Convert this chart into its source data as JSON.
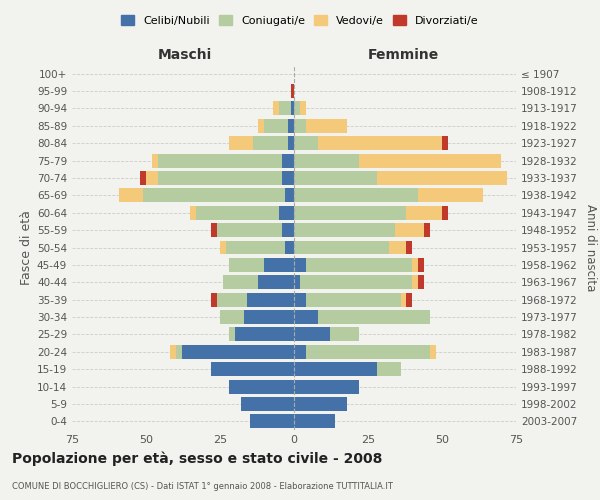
{
  "age_groups": [
    "0-4",
    "5-9",
    "10-14",
    "15-19",
    "20-24",
    "25-29",
    "30-34",
    "35-39",
    "40-44",
    "45-49",
    "50-54",
    "55-59",
    "60-64",
    "65-69",
    "70-74",
    "75-79",
    "80-84",
    "85-89",
    "90-94",
    "95-99",
    "100+"
  ],
  "birth_years": [
    "2003-2007",
    "1998-2002",
    "1993-1997",
    "1988-1992",
    "1983-1987",
    "1978-1982",
    "1973-1977",
    "1968-1972",
    "1963-1967",
    "1958-1962",
    "1953-1957",
    "1948-1952",
    "1943-1947",
    "1938-1942",
    "1933-1937",
    "1928-1932",
    "1923-1927",
    "1918-1922",
    "1913-1917",
    "1908-1912",
    "≤ 1907"
  ],
  "colors": {
    "celibe": "#4472a8",
    "coniugato": "#b5cba0",
    "vedovo": "#f5c97a",
    "divorziato": "#c0392b"
  },
  "maschi": {
    "celibe": [
      15,
      18,
      22,
      28,
      38,
      20,
      17,
      16,
      12,
      10,
      3,
      4,
      5,
      3,
      4,
      4,
      2,
      2,
      1,
      0,
      0
    ],
    "coniugato": [
      0,
      0,
      0,
      0,
      2,
      2,
      8,
      10,
      12,
      12,
      20,
      22,
      28,
      48,
      42,
      42,
      12,
      8,
      4,
      0,
      0
    ],
    "vedovo": [
      0,
      0,
      0,
      0,
      2,
      0,
      0,
      0,
      0,
      0,
      2,
      0,
      2,
      8,
      4,
      2,
      8,
      2,
      2,
      0,
      0
    ],
    "divorziato": [
      0,
      0,
      0,
      0,
      0,
      0,
      0,
      2,
      0,
      0,
      0,
      2,
      0,
      0,
      2,
      0,
      0,
      0,
      0,
      1,
      0
    ]
  },
  "femmine": {
    "nubile": [
      14,
      18,
      22,
      28,
      4,
      12,
      8,
      4,
      2,
      4,
      0,
      0,
      0,
      0,
      0,
      0,
      0,
      0,
      0,
      0,
      0
    ],
    "coniugata": [
      0,
      0,
      0,
      8,
      42,
      10,
      38,
      32,
      38,
      36,
      32,
      34,
      38,
      42,
      28,
      22,
      8,
      4,
      2,
      0,
      0
    ],
    "vedova": [
      0,
      0,
      0,
      0,
      2,
      0,
      0,
      2,
      2,
      2,
      6,
      10,
      12,
      22,
      44,
      48,
      42,
      14,
      2,
      0,
      0
    ],
    "divorziata": [
      0,
      0,
      0,
      0,
      0,
      0,
      0,
      2,
      2,
      2,
      2,
      2,
      2,
      0,
      0,
      0,
      2,
      0,
      0,
      0,
      0
    ]
  },
  "xlim": 75,
  "title": "Popolazione per età, sesso e stato civile - 2008",
  "subtitle": "COMUNE DI BOCCHIGLIERO (CS) - Dati ISTAT 1° gennaio 2008 - Elaborazione TUTTITALIA.IT",
  "ylabel_left": "Fasce di età",
  "ylabel_right": "Anni di nascita",
  "xlabel_left": "Maschi",
  "xlabel_right": "Femmine",
  "background_color": "#f2f2ee",
  "grid_color": "#cccccc"
}
